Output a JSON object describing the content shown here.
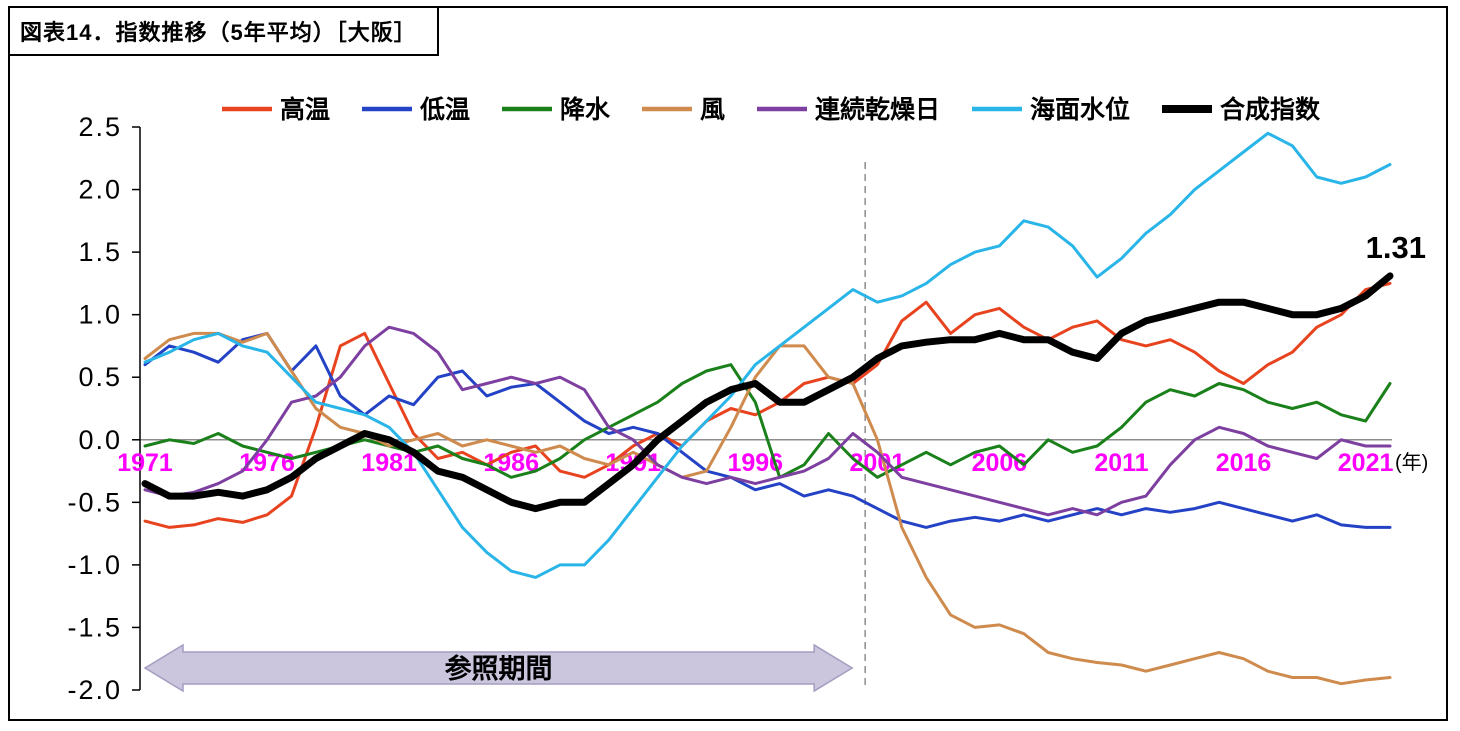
{
  "title": "図表14．指数推移（5年平均）［大阪］",
  "annotation": {
    "final_value_label": "1.31"
  },
  "x_unit_label": "(年)",
  "reference_period": {
    "label": "参照期間",
    "start_year": 1971,
    "end_year": 2000
  },
  "colors": {
    "x_tick": "#ff00ff",
    "zero_line": "#8c8c8c",
    "dashed_line": "#8c8c8c",
    "arrow_fill": "#cbc5dd",
    "arrow_edge": "#a49dc0",
    "axis": "#000000"
  },
  "chart_data": {
    "type": "line",
    "title": "図表14．指数推移（5年平均）［大阪］",
    "xlabel": "年",
    "ylabel": "",
    "xlim": [
      1971,
      2022
    ],
    "ylim": [
      -2.0,
      2.5
    ],
    "grid": false,
    "legend_position": "top",
    "dashed_vline_x": 2000.5,
    "x_ticks": [
      1971,
      1976,
      1981,
      1986,
      1991,
      1996,
      2001,
      2006,
      2011,
      2016,
      2021
    ],
    "y_ticks": [
      2.5,
      2.0,
      1.5,
      1.0,
      0.5,
      0.0,
      -0.5,
      -1.0,
      -1.5,
      -2.0
    ],
    "x": [
      1971,
      1972,
      1973,
      1974,
      1975,
      1976,
      1977,
      1978,
      1979,
      1980,
      1981,
      1982,
      1983,
      1984,
      1985,
      1986,
      1987,
      1988,
      1989,
      1990,
      1991,
      1992,
      1993,
      1994,
      1995,
      1996,
      1997,
      1998,
      1999,
      2000,
      2001,
      2002,
      2003,
      2004,
      2005,
      2006,
      2007,
      2008,
      2009,
      2010,
      2011,
      2012,
      2013,
      2014,
      2015,
      2016,
      2017,
      2018,
      2019,
      2020,
      2021,
      2022
    ],
    "series": [
      {
        "name": "高温",
        "color": "#e8431f",
        "width": 3,
        "values": [
          -0.65,
          -0.7,
          -0.68,
          -0.63,
          -0.66,
          -0.6,
          -0.45,
          0.1,
          0.75,
          0.85,
          0.45,
          0.05,
          -0.15,
          -0.1,
          -0.2,
          -0.1,
          -0.05,
          -0.25,
          -0.3,
          -0.2,
          -0.05,
          0.05,
          -0.05,
          0.15,
          0.25,
          0.2,
          0.3,
          0.45,
          0.5,
          0.45,
          0.6,
          0.95,
          1.1,
          0.85,
          1.0,
          1.05,
          0.9,
          0.8,
          0.9,
          0.95,
          0.8,
          0.75,
          0.8,
          0.7,
          0.55,
          0.45,
          0.6,
          0.7,
          0.9,
          1.0,
          1.2,
          1.25
        ]
      },
      {
        "name": "低温",
        "color": "#2442c6",
        "width": 3,
        "values": [
          0.6,
          0.75,
          0.7,
          0.62,
          0.8,
          0.85,
          0.55,
          0.75,
          0.35,
          0.2,
          0.35,
          0.28,
          0.5,
          0.55,
          0.35,
          0.42,
          0.45,
          0.3,
          0.15,
          0.05,
          0.1,
          0.05,
          -0.1,
          -0.25,
          -0.3,
          -0.4,
          -0.35,
          -0.45,
          -0.4,
          -0.45,
          -0.55,
          -0.65,
          -0.7,
          -0.65,
          -0.62,
          -0.65,
          -0.6,
          -0.65,
          -0.6,
          -0.55,
          -0.6,
          -0.55,
          -0.58,
          -0.55,
          -0.5,
          -0.55,
          -0.6,
          -0.65,
          -0.6,
          -0.68,
          -0.7,
          -0.7
        ]
      },
      {
        "name": "降水",
        "color": "#1a801a",
        "width": 3,
        "values": [
          -0.05,
          0.0,
          -0.03,
          0.05,
          -0.05,
          -0.1,
          -0.15,
          -0.1,
          -0.05,
          0.0,
          -0.05,
          -0.1,
          -0.05,
          -0.15,
          -0.2,
          -0.3,
          -0.25,
          -0.15,
          0.0,
          0.1,
          0.2,
          0.3,
          0.45,
          0.55,
          0.6,
          0.3,
          -0.3,
          -0.2,
          0.05,
          -0.15,
          -0.3,
          -0.2,
          -0.1,
          -0.2,
          -0.1,
          -0.05,
          -0.2,
          0.0,
          -0.1,
          -0.05,
          0.1,
          0.3,
          0.4,
          0.35,
          0.45,
          0.4,
          0.3,
          0.25,
          0.3,
          0.2,
          0.15,
          0.45
        ]
      },
      {
        "name": "風",
        "color": "#cf8b4e",
        "width": 3,
        "values": [
          0.65,
          0.8,
          0.85,
          0.85,
          0.78,
          0.85,
          0.55,
          0.25,
          0.1,
          0.05,
          -0.05,
          0.0,
          0.05,
          -0.05,
          0.0,
          -0.05,
          -0.1,
          -0.05,
          -0.15,
          -0.2,
          -0.1,
          -0.2,
          -0.3,
          -0.25,
          0.1,
          0.5,
          0.75,
          0.75,
          0.5,
          0.45,
          0.0,
          -0.7,
          -1.1,
          -1.4,
          -1.5,
          -1.48,
          -1.55,
          -1.7,
          -1.75,
          -1.78,
          -1.8,
          -1.85,
          -1.8,
          -1.75,
          -1.7,
          -1.75,
          -1.85,
          -1.9,
          -1.9,
          -1.95,
          -1.92,
          -1.9
        ]
      },
      {
        "name": "連続乾燥日",
        "color": "#7d3fa0",
        "width": 3,
        "values": [
          -0.4,
          -0.45,
          -0.42,
          -0.35,
          -0.25,
          0.0,
          0.3,
          0.35,
          0.5,
          0.75,
          0.9,
          0.85,
          0.7,
          0.4,
          0.45,
          0.5,
          0.45,
          0.5,
          0.4,
          0.1,
          0.0,
          -0.2,
          -0.3,
          -0.35,
          -0.3,
          -0.35,
          -0.3,
          -0.25,
          -0.15,
          0.05,
          -0.1,
          -0.3,
          -0.35,
          -0.4,
          -0.45,
          -0.5,
          -0.55,
          -0.6,
          -0.55,
          -0.6,
          -0.5,
          -0.45,
          -0.2,
          0.0,
          0.1,
          0.05,
          -0.05,
          -0.1,
          -0.15,
          0.0,
          -0.05,
          -0.05
        ]
      },
      {
        "name": "海面水位",
        "color": "#29b5e8",
        "width": 3,
        "values": [
          0.62,
          0.7,
          0.8,
          0.85,
          0.75,
          0.7,
          0.5,
          0.3,
          0.25,
          0.2,
          0.1,
          -0.1,
          -0.4,
          -0.7,
          -0.9,
          -1.05,
          -1.1,
          -1.0,
          -1.0,
          -0.8,
          -0.55,
          -0.3,
          -0.05,
          0.15,
          0.35,
          0.6,
          0.75,
          0.9,
          1.05,
          1.2,
          1.1,
          1.15,
          1.25,
          1.4,
          1.5,
          1.55,
          1.75,
          1.7,
          1.55,
          1.3,
          1.45,
          1.65,
          1.8,
          2.0,
          2.15,
          2.3,
          2.45,
          2.35,
          2.1,
          2.05,
          2.1,
          2.2
        ]
      },
      {
        "name": "合成指数",
        "color": "#000000",
        "width": 7,
        "values": [
          -0.35,
          -0.45,
          -0.45,
          -0.42,
          -0.45,
          -0.4,
          -0.3,
          -0.15,
          -0.05,
          0.05,
          0.0,
          -0.1,
          -0.25,
          -0.3,
          -0.4,
          -0.5,
          -0.55,
          -0.5,
          -0.5,
          -0.35,
          -0.2,
          0.0,
          0.15,
          0.3,
          0.4,
          0.45,
          0.3,
          0.3,
          0.4,
          0.5,
          0.65,
          0.75,
          0.78,
          0.8,
          0.8,
          0.85,
          0.8,
          0.8,
          0.7,
          0.65,
          0.85,
          0.95,
          1.0,
          1.05,
          1.1,
          1.1,
          1.05,
          1.0,
          1.0,
          1.05,
          1.15,
          1.31
        ]
      }
    ]
  }
}
